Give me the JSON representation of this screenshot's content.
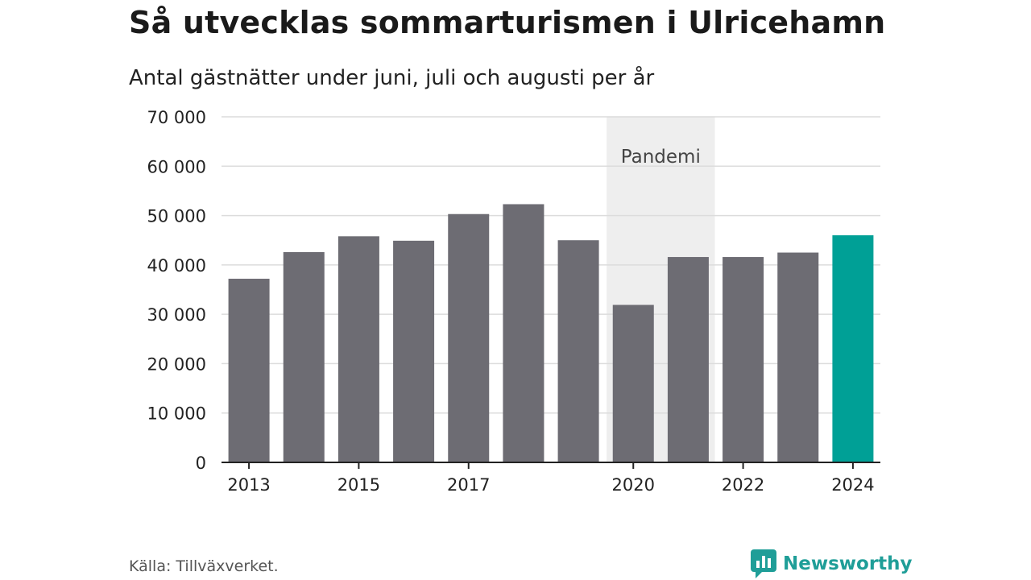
{
  "title": "Så utvecklas sommarturismen i Ulricehamn",
  "subtitle": "Antal gästnätter under juni, juli och augusti per år",
  "source": "Källa: Tillväxverket.",
  "logo": {
    "text": "Newsworthy",
    "icon": "newsworthy-logo-icon"
  },
  "colors": {
    "bar": "#6d6c73",
    "highlight": "#00a096",
    "band": "#eeeeee",
    "grid": "#dcdcdc",
    "axis": "#222222",
    "brand": "#1f9e98"
  },
  "chart_data": {
    "type": "bar",
    "categories": [
      "2013",
      "2014",
      "2015",
      "2016",
      "2017",
      "2018",
      "2019",
      "2020",
      "2021",
      "2022",
      "2023",
      "2024"
    ],
    "values": [
      37200,
      42600,
      45800,
      44900,
      50300,
      52300,
      45000,
      31900,
      41600,
      41600,
      42500,
      46000
    ],
    "highlight_category": "2024",
    "x_tick_labels": [
      "2013",
      "2015",
      "2017",
      "2020",
      "2022",
      "2024"
    ],
    "ylim": [
      0,
      70000
    ],
    "y_ticks": [
      0,
      10000,
      20000,
      30000,
      40000,
      50000,
      60000,
      70000
    ],
    "y_tick_labels": [
      "0",
      "10 000",
      "20 000",
      "30 000",
      "40 000",
      "50 000",
      "60 000",
      "70 000"
    ],
    "grid": true,
    "xlabel": "",
    "ylabel": "",
    "annotations": [
      {
        "type": "band",
        "label": "Pandemi",
        "from": "2020",
        "to": "2021"
      }
    ]
  }
}
